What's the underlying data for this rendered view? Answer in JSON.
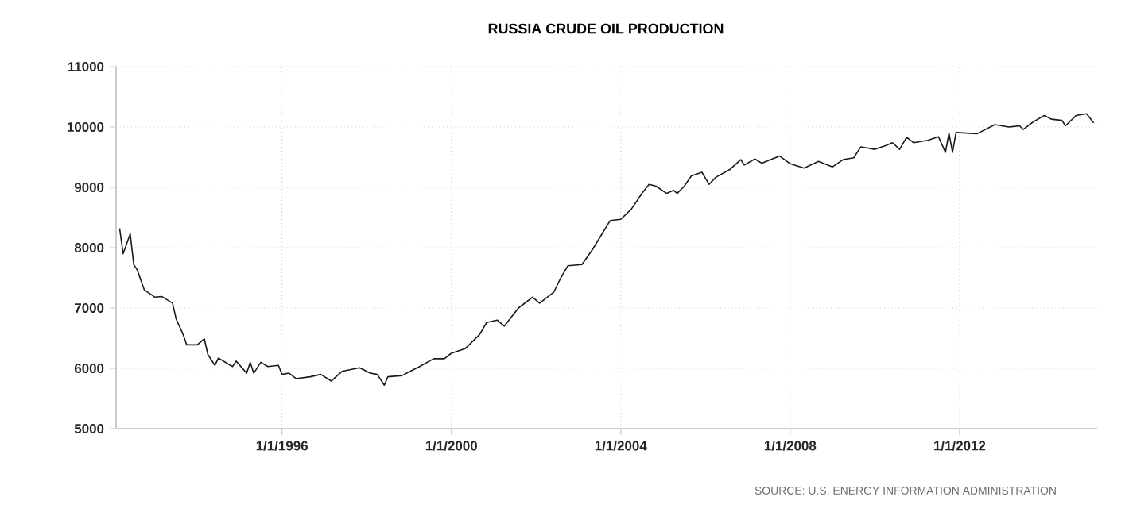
{
  "chart_data": {
    "type": "line",
    "title": "RUSSIA CRUDE OIL PRODUCTION",
    "annotations": [
      "SOURCE: U.S. ENERGY INFORMATION ADMINISTRATION"
    ],
    "x": [
      "1992-03",
      "1992-04",
      "1992-06",
      "1992-07",
      "1992-08",
      "1992-10",
      "1993-01",
      "1993-03",
      "1993-06",
      "1993-07",
      "1993-09",
      "1993-10",
      "1994-01",
      "1994-03",
      "1994-04",
      "1994-06",
      "1994-07",
      "1994-11",
      "1994-12",
      "1995-03",
      "1995-04",
      "1995-05",
      "1995-07",
      "1995-09",
      "1995-12",
      "1996-01",
      "1996-03",
      "1996-05",
      "1996-09",
      "1996-12",
      "1997-03",
      "1997-06",
      "1997-11",
      "1998-02",
      "1998-04",
      "1998-06",
      "1998-07",
      "1998-11",
      "1999-02",
      "1999-04",
      "1999-08",
      "1999-11",
      "2000-01",
      "2000-05",
      "2000-09",
      "2000-11",
      "2001-02",
      "2001-04",
      "2001-08",
      "2001-12",
      "2002-02",
      "2002-06",
      "2002-08",
      "2002-10",
      "2003-02",
      "2003-05",
      "2003-08",
      "2003-10",
      "2004-01",
      "2004-04",
      "2004-07",
      "2004-09",
      "2004-11",
      "2005-02",
      "2005-04",
      "2005-05",
      "2005-07",
      "2005-09",
      "2005-12",
      "2006-02",
      "2006-04",
      "2006-08",
      "2006-11",
      "2006-12",
      "2007-03",
      "2007-05",
      "2007-10",
      "2008-01",
      "2008-05",
      "2008-09",
      "2009-01",
      "2009-04",
      "2009-07",
      "2009-09",
      "2010-01",
      "2010-04",
      "2010-06",
      "2010-08",
      "2010-10",
      "2010-12",
      "2011-04",
      "2011-07",
      "2011-09",
      "2011-10",
      "2011-11",
      "2011-12",
      "2012-06",
      "2012-11",
      "2013-03",
      "2013-06",
      "2013-07",
      "2013-10",
      "2014-01",
      "2014-03",
      "2014-06",
      "2014-07",
      "2014-10",
      "2015-01",
      "2015-03"
    ],
    "series": [
      {
        "color": "#1a1a1a",
        "values": [
          8320,
          7900,
          8230,
          7720,
          7630,
          7300,
          7180,
          7190,
          7080,
          6820,
          6560,
          6390,
          6390,
          6490,
          6230,
          6050,
          6170,
          6030,
          6120,
          5920,
          6100,
          5920,
          6100,
          6030,
          6050,
          5900,
          5920,
          5830,
          5860,
          5900,
          5790,
          5950,
          6010,
          5920,
          5900,
          5720,
          5860,
          5880,
          5970,
          6030,
          6160,
          6160,
          6250,
          6330,
          6560,
          6760,
          6800,
          6700,
          7000,
          7180,
          7080,
          7260,
          7500,
          7700,
          7720,
          7970,
          8260,
          8450,
          8470,
          8640,
          8900,
          9050,
          9020,
          8900,
          8950,
          8900,
          9020,
          9190,
          9250,
          9050,
          9170,
          9300,
          9460,
          9370,
          9470,
          9400,
          9520,
          9390,
          9320,
          9430,
          9340,
          9460,
          9490,
          9670,
          9630,
          9690,
          9740,
          9630,
          9830,
          9740,
          9780,
          9840,
          9580,
          9900,
          9580,
          9910,
          9890,
          10040,
          10000,
          10020,
          9960,
          10090,
          10190,
          10130,
          10110,
          10020,
          10190,
          10220,
          10070
        ]
      }
    ],
    "xlim": [
      "1992-02",
      "2015-04"
    ],
    "xticks": [
      {
        "value": "1996-01-01",
        "label": "1/1/1996"
      },
      {
        "value": "2000-01-01",
        "label": "1/1/2000"
      },
      {
        "value": "2004-01-01",
        "label": "1/1/2004"
      },
      {
        "value": "2008-01-01",
        "label": "1/1/2008"
      },
      {
        "value": "2012-01-01",
        "label": "1/1/2012"
      }
    ],
    "ylim": [
      5000,
      11000
    ],
    "yticks": [
      5000,
      6000,
      7000,
      8000,
      9000,
      10000,
      11000
    ],
    "grid": true
  }
}
